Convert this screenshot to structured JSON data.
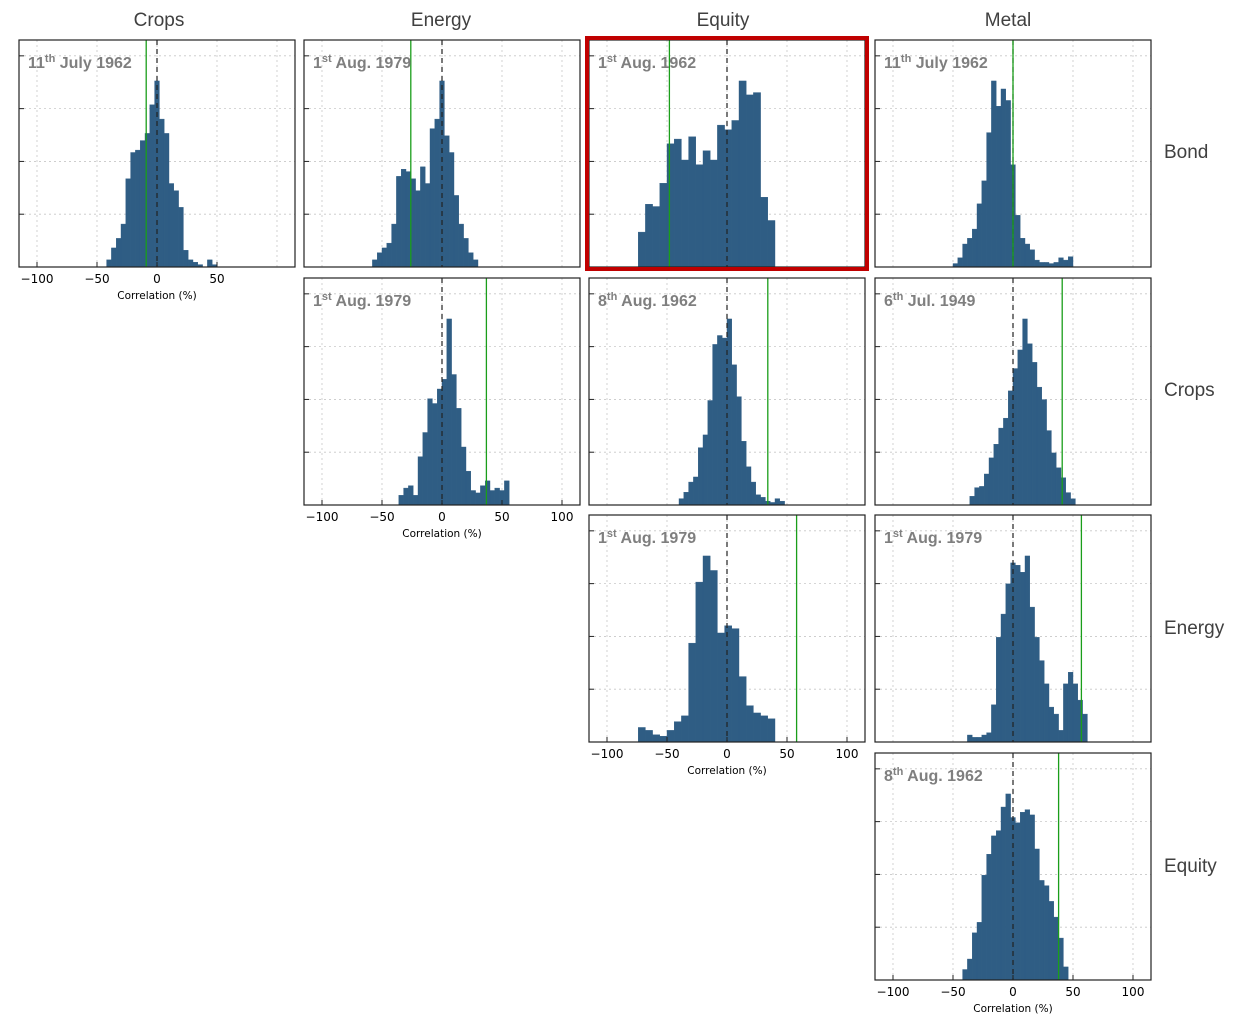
{
  "colors": {
    "bar": "#2f5d84",
    "green_line": "#1a9e1a",
    "highlight": "#c00000",
    "zero_line": "#222222"
  },
  "columns": [
    "Crops",
    "Energy",
    "Equity",
    "Metal"
  ],
  "rows": [
    "Bond",
    "Crops",
    "Energy",
    "Equity"
  ],
  "x_axis": {
    "label": "Correlation (%)",
    "ticks": [
      -100,
      -50,
      0,
      50,
      100
    ],
    "range": [
      -115,
      115
    ]
  },
  "chart_data": [
    {
      "type": "bar",
      "col_title": "Crops",
      "row_title": "Bond",
      "date_day": "11",
      "date_suffix": "th",
      "date_rest": " July 1962",
      "xlim": [
        -115,
        115
      ],
      "green_x": -9,
      "highlighted": false,
      "show_xaxis": true,
      "tick_labels": [
        "−100",
        "−50",
        "0",
        "50"
      ],
      "bin_start": -42,
      "bin_width": 4,
      "values": [
        3,
        8,
        12,
        18,
        37,
        48,
        49,
        53,
        56,
        68,
        78,
        62,
        56,
        35,
        32,
        25,
        7,
        3,
        2,
        1,
        0,
        3,
        1
      ]
    },
    {
      "type": "bar",
      "col_title": "Energy",
      "row_title": "Bond",
      "date_day": "1",
      "date_suffix": "st",
      "date_rest": " Aug. 1979",
      "xlim": [
        -115,
        115
      ],
      "green_x": -26,
      "highlighted": false,
      "show_xaxis": false,
      "tick_labels": [],
      "bin_start": -58,
      "bin_width": 4,
      "values": [
        3,
        6,
        8,
        10,
        18,
        38,
        41,
        40,
        37,
        32,
        42,
        35,
        58,
        62,
        78,
        55,
        48,
        30,
        18,
        12,
        6,
        3
      ]
    },
    {
      "type": "bar",
      "col_title": "Equity",
      "row_title": "Bond",
      "date_day": "1",
      "date_suffix": "st",
      "date_rest": " Aug. 1962",
      "xlim": [
        -115,
        115
      ],
      "green_x": -48,
      "highlighted": true,
      "show_xaxis": false,
      "tick_labels": [],
      "bin_start": -74,
      "bin_width": 6,
      "values": [
        15,
        27,
        26,
        36,
        53,
        55,
        46,
        56,
        44,
        50,
        46,
        61,
        59,
        63,
        80,
        74,
        75,
        30,
        20
      ]
    },
    {
      "type": "bar",
      "col_title": "Metal",
      "row_title": "Bond",
      "date_day": "11",
      "date_suffix": "th",
      "date_rest": " July 1962",
      "xlim": [
        -115,
        115
      ],
      "green_x": 0,
      "highlighted": false,
      "show_xaxis": false,
      "tick_labels": [],
      "bin_start": -50,
      "bin_width": 4,
      "values": [
        3,
        8,
        20,
        25,
        33,
        55,
        75,
        117,
        162,
        140,
        155,
        145,
        89,
        45,
        25,
        20,
        15,
        6,
        4,
        4,
        3,
        4,
        8,
        6,
        9
      ]
    },
    {
      "type": "bar",
      "col_title": "Energy",
      "row_title": "Crops",
      "date_day": "1",
      "date_suffix": "st",
      "date_rest": " Aug. 1979",
      "xlim": [
        -115,
        115
      ],
      "green_x": 37,
      "highlighted": false,
      "show_xaxis": true,
      "tick_labels": [
        "−100",
        "−50",
        "0",
        "50",
        "100"
      ],
      "bin_start": -36,
      "bin_width": 4,
      "values": [
        4,
        7,
        8,
        4,
        20,
        30,
        44,
        42,
        48,
        52,
        77,
        54,
        40,
        24,
        14,
        6,
        5,
        8,
        10,
        6,
        7,
        6,
        10
      ]
    },
    {
      "type": "bar",
      "col_title": "Equity",
      "row_title": "Crops",
      "date_day": "8",
      "date_suffix": "th",
      "date_rest": " Aug. 1962",
      "xlim": [
        -115,
        115
      ],
      "green_x": 34,
      "highlighted": false,
      "show_xaxis": false,
      "tick_labels": [],
      "bin_start": -40,
      "bin_width": 4,
      "values": [
        5,
        10,
        18,
        22,
        45,
        55,
        82,
        126,
        133,
        131,
        146,
        110,
        85,
        50,
        30,
        18,
        8,
        6,
        3,
        2,
        5,
        3
      ]
    },
    {
      "type": "bar",
      "col_title": "Metal",
      "row_title": "Crops",
      "date_day": "6",
      "date_suffix": "th",
      "date_rest": " Jul. 1949",
      "xlim": [
        -115,
        115
      ],
      "green_x": 41,
      "highlighted": false,
      "show_xaxis": false,
      "tick_labels": [],
      "bin_start": -36,
      "bin_width": 4,
      "values": [
        7,
        14,
        15,
        25,
        38,
        49,
        62,
        70,
        92,
        110,
        125,
        150,
        130,
        115,
        95,
        85,
        60,
        42,
        30,
        22,
        10,
        5
      ]
    },
    {
      "type": "bar",
      "col_title": "Equity",
      "row_title": "Energy",
      "date_day": "1",
      "date_suffix": "st",
      "date_rest": " Aug. 1979",
      "xlim": [
        -115,
        115
      ],
      "green_x": 58,
      "highlighted": false,
      "show_xaxis": true,
      "tick_labels": [
        "−100",
        "−50",
        "0",
        "50",
        "100"
      ],
      "bin_start": -74,
      "bin_width": 6,
      "values": [
        10,
        8,
        5,
        4,
        8,
        14,
        18,
        68,
        110,
        128,
        118,
        75,
        80,
        78,
        45,
        25,
        20,
        18,
        16
      ]
    },
    {
      "type": "bar",
      "col_title": "Metal",
      "row_title": "Energy",
      "date_day": "1",
      "date_suffix": "st",
      "date_rest": " Aug. 1979",
      "xlim": [
        -115,
        115
      ],
      "green_x": 57,
      "highlighted": false,
      "show_xaxis": false,
      "tick_labels": [],
      "bin_start": -38,
      "bin_width": 4,
      "values": [
        3,
        2,
        2,
        3,
        4,
        16,
        45,
        55,
        68,
        77,
        76,
        73,
        80,
        58,
        45,
        35,
        25,
        15,
        12,
        5,
        25,
        30,
        25,
        18,
        12
      ]
    },
    {
      "type": "bar",
      "col_title": "Metal",
      "row_title": "Equity",
      "date_day": "8",
      "date_suffix": "th",
      "date_rest": " Aug. 1962",
      "xlim": [
        -115,
        115
      ],
      "green_x": 38,
      "highlighted": false,
      "show_xaxis": true,
      "tick_labels": [
        "−100",
        "−50",
        "0",
        "50",
        "100"
      ],
      "bin_start": -42,
      "bin_width": 4,
      "values": [
        4,
        8,
        18,
        22,
        40,
        48,
        55,
        57,
        66,
        71,
        62,
        60,
        64,
        65,
        63,
        50,
        38,
        36,
        30,
        24,
        16,
        5
      ]
    }
  ]
}
